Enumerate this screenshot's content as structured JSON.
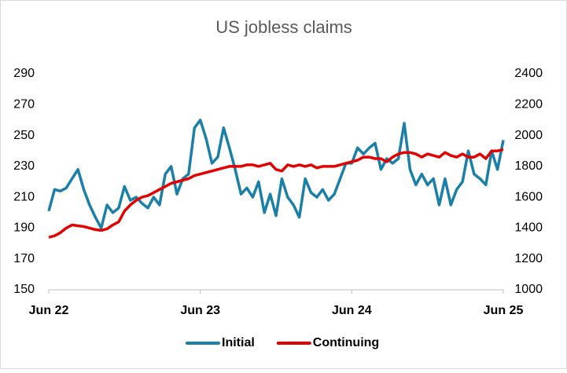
{
  "chart_data": {
    "type": "line",
    "title": "US jobless claims",
    "categories": [
      "Jun 22",
      null,
      null,
      null,
      null,
      null,
      null,
      null,
      null,
      null,
      null,
      null,
      null,
      null,
      null,
      null,
      null,
      null,
      null,
      null,
      null,
      null,
      null,
      null,
      null,
      null,
      "Jun 23",
      null,
      null,
      null,
      null,
      null,
      null,
      null,
      null,
      null,
      null,
      null,
      null,
      null,
      null,
      null,
      null,
      null,
      null,
      null,
      null,
      null,
      null,
      null,
      null,
      null,
      "Jun 24",
      null,
      null,
      null,
      null,
      null,
      null,
      null,
      null,
      null,
      null,
      null,
      null,
      null,
      null,
      null,
      null,
      null,
      null,
      null,
      null,
      null,
      null,
      null,
      null,
      null,
      "Jun 25"
    ],
    "series": [
      {
        "name": "Initial",
        "color": "#1b7fa7",
        "axis": "y",
        "values": [
          201,
          215,
          214,
          216,
          222,
          228,
          215,
          205,
          197,
          190,
          205,
          200,
          203,
          217,
          208,
          210,
          206,
          203,
          210,
          205,
          225,
          230,
          212,
          222,
          225,
          255,
          260,
          248,
          232,
          236,
          255,
          242,
          228,
          212,
          216,
          210,
          220,
          200,
          212,
          198,
          222,
          210,
          205,
          197,
          222,
          213,
          210,
          215,
          208,
          212,
          222,
          232,
          232,
          242,
          238,
          242,
          245,
          228,
          235,
          232,
          235,
          258,
          228,
          218,
          225,
          218,
          222,
          205,
          222,
          205,
          215,
          220,
          240,
          225,
          222,
          218,
          240,
          228,
          247
        ]
      },
      {
        "name": "Continuing",
        "color": "#e00000",
        "axis": "y2",
        "values": [
          1340,
          1350,
          1370,
          1400,
          1420,
          1415,
          1410,
          1400,
          1390,
          1385,
          1395,
          1420,
          1440,
          1510,
          1550,
          1580,
          1600,
          1610,
          1630,
          1650,
          1670,
          1690,
          1700,
          1710,
          1720,
          1740,
          1750,
          1760,
          1770,
          1780,
          1790,
          1800,
          1800,
          1800,
          1810,
          1810,
          1800,
          1810,
          1820,
          1780,
          1770,
          1810,
          1800,
          1810,
          1800,
          1810,
          1790,
          1800,
          1800,
          1800,
          1810,
          1820,
          1830,
          1840,
          1860,
          1860,
          1850,
          1850,
          1830,
          1860,
          1880,
          1890,
          1890,
          1880,
          1860,
          1880,
          1870,
          1860,
          1890,
          1870,
          1860,
          1880,
          1860,
          1860,
          1880,
          1850,
          1900,
          1900,
          1910
        ]
      }
    ],
    "ylim": [
      150,
      290
    ],
    "yticks": [
      150,
      170,
      190,
      210,
      230,
      250,
      270,
      290
    ],
    "y2lim": [
      1000,
      2400
    ],
    "y2ticks": [
      1000,
      1200,
      1400,
      1600,
      1800,
      2000,
      2200,
      2400
    ],
    "grid": false,
    "legend": "bottom"
  }
}
